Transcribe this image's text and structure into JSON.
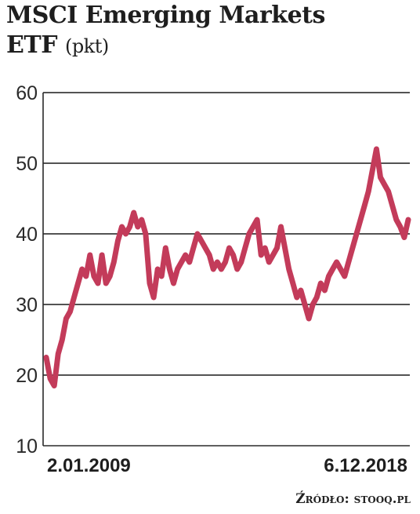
{
  "title": {
    "line1": "MSCI Emerging Markets",
    "line2": "ETF",
    "unit": "(pkt)"
  },
  "source": "Źródło: stooq.pl",
  "colors": {
    "line": "#c33b5a",
    "grid": "#1a1a1a",
    "axis": "#2a2a2a"
  },
  "chart_data": {
    "type": "line",
    "title": "MSCI Emerging Markets ETF (pkt)",
    "xlabel": "",
    "ylabel": "",
    "x_start_label": "2.01.2009",
    "x_end_label": "6.12.2018",
    "ylim": [
      10,
      60
    ],
    "yticks": [
      10,
      20,
      30,
      40,
      50,
      60
    ],
    "grid": "horizontal",
    "series": [
      {
        "values": [
          22.5,
          19.5,
          18.5,
          23,
          25,
          28,
          29,
          31,
          33,
          35,
          34,
          37,
          34,
          33,
          37,
          33,
          34,
          36,
          39,
          41,
          40,
          41,
          43,
          41,
          42,
          40,
          33,
          31,
          35,
          34,
          38,
          35,
          33,
          35,
          36,
          37,
          36,
          38,
          40,
          39,
          38,
          37,
          35,
          36,
          35,
          36,
          38,
          37,
          35,
          36,
          38,
          40,
          41,
          42,
          37,
          38,
          36,
          37,
          38,
          41,
          38,
          35,
          33,
          31,
          32,
          30,
          28,
          30,
          31,
          33,
          32,
          34,
          35,
          36,
          35,
          34,
          36,
          38,
          40,
          42,
          44,
          46,
          49,
          52,
          48,
          47,
          46,
          44,
          42,
          41,
          39.5,
          42
        ]
      }
    ]
  }
}
